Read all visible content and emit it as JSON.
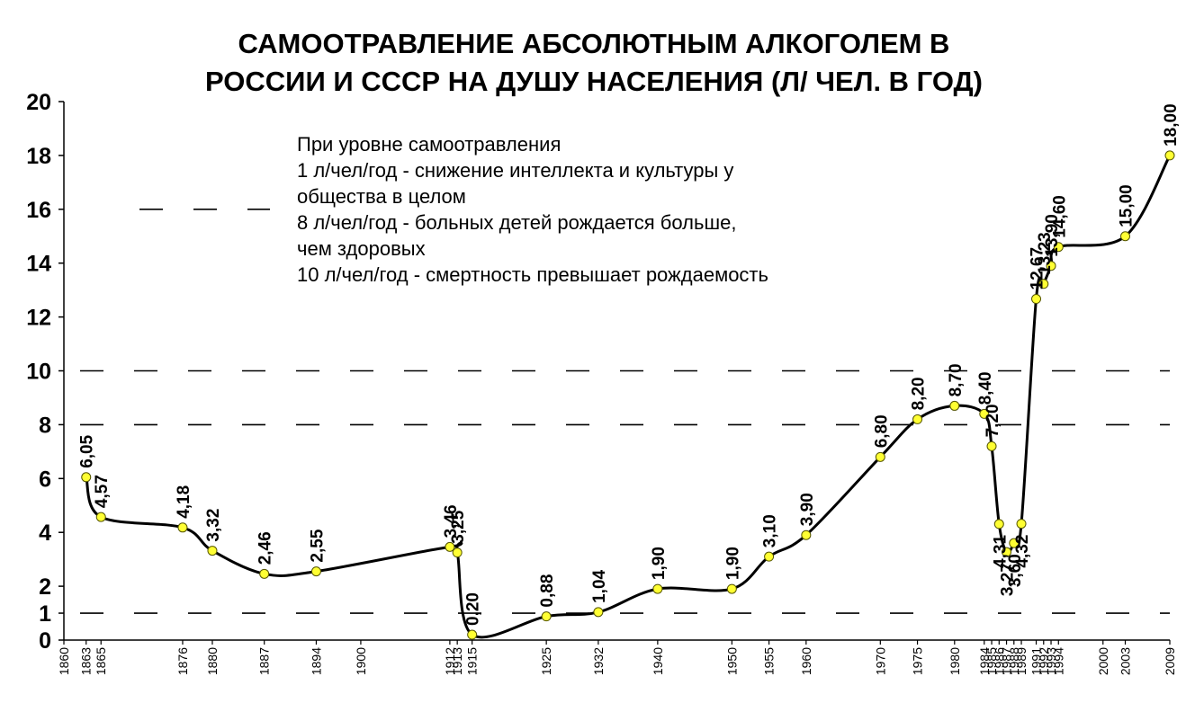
{
  "chart_data": {
    "type": "line",
    "title_lines": [
      "САМООТРАВЛЕНИЕ АБСОЛЮТНЫМ АЛКОГОЛЕМ В",
      "РОССИИ И СССР НА ДУШУ НАСЕЛЕНИЯ (Л/ ЧЕЛ. В ГОД)"
    ],
    "xlabel": "",
    "ylabel": "",
    "xlim": [
      1860,
      2009
    ],
    "ylim": [
      0,
      20
    ],
    "y_ticks": [
      0,
      1,
      2,
      4,
      6,
      8,
      10,
      12,
      14,
      16,
      18,
      20
    ],
    "y_tick_labels": [
      "0",
      "1",
      "2",
      "4",
      "6",
      "8",
      "10",
      "12",
      "14",
      "16",
      "18",
      "20"
    ],
    "x_ticks": [
      1860,
      1863,
      1865,
      1876,
      1880,
      1887,
      1894,
      1900,
      1912,
      1913,
      1915,
      1925,
      1932,
      1940,
      1950,
      1955,
      1960,
      1970,
      1975,
      1980,
      1984,
      1985,
      1986,
      1987,
      1988,
      1989,
      1991,
      1992,
      1993,
      1994,
      2000,
      2003,
      2009
    ],
    "x_tick_labels": [
      "1860",
      "1863",
      "1865",
      "1876",
      "1880",
      "1887",
      "1894",
      "1900",
      "1912",
      "1913",
      "1915",
      "1925",
      "1932",
      "1940",
      "1950",
      "1955",
      "1960",
      "1970",
      "1975",
      "1980",
      "1984",
      "1985",
      "1986",
      "1987",
      "1988",
      "1989",
      "1991",
      "1992",
      "1993",
      "1994",
      "2000",
      "2003",
      "2009"
    ],
    "series": [
      {
        "points": [
          {
            "x": 1863,
            "y": 6.05,
            "label": "6,05"
          },
          {
            "x": 1865,
            "y": 4.57,
            "label": "4,57"
          },
          {
            "x": 1876,
            "y": 4.18,
            "label": "4,18"
          },
          {
            "x": 1880,
            "y": 3.32,
            "label": "3,32"
          },
          {
            "x": 1887,
            "y": 2.46,
            "label": "2,46"
          },
          {
            "x": 1894,
            "y": 2.55,
            "label": "2,55"
          },
          {
            "x": 1912,
            "y": 3.46,
            "label": "3,46"
          },
          {
            "x": 1913,
            "y": 3.25,
            "label": "3,25"
          },
          {
            "x": 1915,
            "y": 0.2,
            "label": "0,20"
          },
          {
            "x": 1925,
            "y": 0.88,
            "label": "0,88"
          },
          {
            "x": 1932,
            "y": 1.04,
            "label": "1,04"
          },
          {
            "x": 1940,
            "y": 1.9,
            "label": "1,90"
          },
          {
            "x": 1950,
            "y": 1.9,
            "label": "1,90"
          },
          {
            "x": 1955,
            "y": 3.1,
            "label": "3,10"
          },
          {
            "x": 1960,
            "y": 3.9,
            "label": "3,90"
          },
          {
            "x": 1970,
            "y": 6.8,
            "label": "6,80"
          },
          {
            "x": 1975,
            "y": 8.2,
            "label": "8,20"
          },
          {
            "x": 1980,
            "y": 8.7,
            "label": "8,70"
          },
          {
            "x": 1984,
            "y": 8.4,
            "label": "8,40"
          },
          {
            "x": 1985,
            "y": 7.2,
            "label": "7,20"
          },
          {
            "x": 1986,
            "y": 4.31,
            "label": "4,31"
          },
          {
            "x": 1987,
            "y": 3.27,
            "label": "3,27"
          },
          {
            "x": 1988,
            "y": 3.6,
            "label": "3,60"
          },
          {
            "x": 1989,
            "y": 4.32,
            "label": "4,32"
          },
          {
            "x": 1991,
            "y": 12.67,
            "label": "12,67"
          },
          {
            "x": 1992,
            "y": 13.23,
            "label": "13,23"
          },
          {
            "x": 1993,
            "y": 13.9,
            "label": "13,90"
          },
          {
            "x": 1994,
            "y": 14.6,
            "label": "14,60"
          },
          {
            "x": 2003,
            "y": 15.0,
            "label": "15,00"
          },
          {
            "x": 2009,
            "y": 18.0,
            "label": "18,00"
          }
        ]
      }
    ],
    "reference_lines": [
      1,
      8,
      10
    ],
    "grid": false,
    "annotation_lines": [
      "При уровне самоотравления",
      "1 л/чел/год - снижение интеллекта и культуры у",
      "общества в целом",
      "8 л/чел/год - больных детей рождается больше,",
      "чем здоровых",
      "10 л/чел/год - смертность превышает рождаемость"
    ],
    "colors": {
      "line": "#000000",
      "marker_fill": "#ffff33",
      "marker_stroke": "#555500",
      "reference_line": "#000000"
    }
  }
}
